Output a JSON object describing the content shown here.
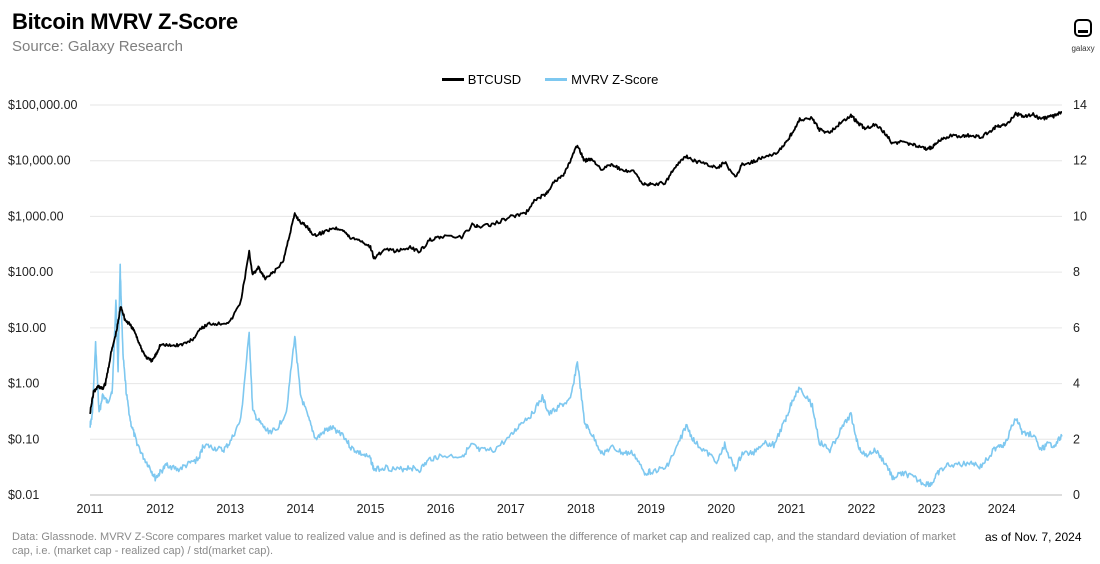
{
  "header": {
    "title": "Bitcoin MVRV Z-Score",
    "subtitle": "Source: Galaxy Research",
    "logo_text": "galaxy"
  },
  "footer": {
    "note": "Data: Glassnode. MVRV Z-Score compares market value to realized value and is defined as the ratio between the difference of market cap and realized cap, and the standard deviation of market cap, i.e. (market cap - realized cap) / std(market cap).",
    "as_of": "as of Nov. 7, 2024"
  },
  "colors": {
    "btc": "#000000",
    "mvrv": "#7ec8f0",
    "grid": "#e6e6e6"
  },
  "chart_data": {
    "type": "line",
    "title": "Bitcoin MVRV Z-Score",
    "legend_position": "top-center",
    "grid": true,
    "x_ticks": [
      "2011",
      "2012",
      "2013",
      "2014",
      "2015",
      "2016",
      "2017",
      "2018",
      "2019",
      "2020",
      "2021",
      "2022",
      "2023",
      "2024"
    ],
    "xlim": [
      2011.0,
      2024.86
    ],
    "y_left": {
      "scale": "log",
      "ylim": [
        0.01,
        100000
      ],
      "tick_values": [
        0.01,
        0.1,
        1,
        10,
        100,
        1000,
        10000,
        100000
      ],
      "tick_labels": [
        "$0.01",
        "$0.10",
        "$1.00",
        "$10.00",
        "$100.00",
        "$1,000.00",
        "$10,000.00",
        "$100,000.00"
      ]
    },
    "y_right": {
      "scale": "linear",
      "ylim": [
        0,
        14
      ],
      "tick_values": [
        0,
        2,
        4,
        6,
        8,
        10,
        12,
        14
      ],
      "tick_labels": [
        "0",
        "2",
        "4",
        "6",
        "8",
        "10",
        "12",
        "14"
      ]
    },
    "series": [
      {
        "name": "BTCUSD",
        "axis": "left",
        "points": [
          [
            2011.0,
            0.3
          ],
          [
            2011.05,
            0.7
          ],
          [
            2011.12,
            0.9
          ],
          [
            2011.18,
            0.8
          ],
          [
            2011.22,
            1.0
          ],
          [
            2011.3,
            3.5
          ],
          [
            2011.38,
            9
          ],
          [
            2011.44,
            25
          ],
          [
            2011.5,
            14
          ],
          [
            2011.58,
            11
          ],
          [
            2011.65,
            8
          ],
          [
            2011.72,
            4.5
          ],
          [
            2011.8,
            3
          ],
          [
            2011.88,
            2.5
          ],
          [
            2011.95,
            3.5
          ],
          [
            2012.0,
            5
          ],
          [
            2012.15,
            4.8
          ],
          [
            2012.3,
            5
          ],
          [
            2012.45,
            6
          ],
          [
            2012.6,
            10
          ],
          [
            2012.7,
            12
          ],
          [
            2012.85,
            12
          ],
          [
            2013.0,
            13
          ],
          [
            2013.15,
            30
          ],
          [
            2013.27,
            230
          ],
          [
            2013.32,
            90
          ],
          [
            2013.4,
            120
          ],
          [
            2013.5,
            75
          ],
          [
            2013.62,
            100
          ],
          [
            2013.75,
            150
          ],
          [
            2013.85,
            500
          ],
          [
            2013.92,
            1100
          ],
          [
            2014.0,
            800
          ],
          [
            2014.1,
            650
          ],
          [
            2014.2,
            450
          ],
          [
            2014.3,
            500
          ],
          [
            2014.45,
            620
          ],
          [
            2014.6,
            600
          ],
          [
            2014.7,
            420
          ],
          [
            2014.85,
            380
          ],
          [
            2015.0,
            280
          ],
          [
            2015.05,
            180
          ],
          [
            2015.2,
            250
          ],
          [
            2015.4,
            240
          ],
          [
            2015.55,
            280
          ],
          [
            2015.7,
            235
          ],
          [
            2015.85,
            380
          ],
          [
            2016.0,
            430
          ],
          [
            2016.3,
            420
          ],
          [
            2016.45,
            700
          ],
          [
            2016.55,
            650
          ],
          [
            2016.75,
            720
          ],
          [
            2017.0,
            1000
          ],
          [
            2017.2,
            1100
          ],
          [
            2017.35,
            2000
          ],
          [
            2017.5,
            2500
          ],
          [
            2017.6,
            4000
          ],
          [
            2017.75,
            5500
          ],
          [
            2017.85,
            10000
          ],
          [
            2017.95,
            19000
          ],
          [
            2018.05,
            10000
          ],
          [
            2018.15,
            11000
          ],
          [
            2018.3,
            7000
          ],
          [
            2018.45,
            8500
          ],
          [
            2018.6,
            6500
          ],
          [
            2018.75,
            6400
          ],
          [
            2018.9,
            3700
          ],
          [
            2019.0,
            3800
          ],
          [
            2019.2,
            4000
          ],
          [
            2019.35,
            8000
          ],
          [
            2019.5,
            12000
          ],
          [
            2019.62,
            10000
          ],
          [
            2019.8,
            8500
          ],
          [
            2019.95,
            7200
          ],
          [
            2020.05,
            9500
          ],
          [
            2020.2,
            5000
          ],
          [
            2020.3,
            8500
          ],
          [
            2020.45,
            9500
          ],
          [
            2020.6,
            11500
          ],
          [
            2020.75,
            13000
          ],
          [
            2020.9,
            19000
          ],
          [
            2021.0,
            30000
          ],
          [
            2021.12,
            55000
          ],
          [
            2021.3,
            58000
          ],
          [
            2021.4,
            36000
          ],
          [
            2021.55,
            32000
          ],
          [
            2021.7,
            48000
          ],
          [
            2021.85,
            65000
          ],
          [
            2021.95,
            48000
          ],
          [
            2022.05,
            38000
          ],
          [
            2022.2,
            45000
          ],
          [
            2022.35,
            30000
          ],
          [
            2022.45,
            20000
          ],
          [
            2022.6,
            22000
          ],
          [
            2022.75,
            19000
          ],
          [
            2022.9,
            16500
          ],
          [
            2023.0,
            17000
          ],
          [
            2023.1,
            23000
          ],
          [
            2023.25,
            28000
          ],
          [
            2023.45,
            27000
          ],
          [
            2023.55,
            29000
          ],
          [
            2023.7,
            26000
          ],
          [
            2023.85,
            35000
          ],
          [
            2023.95,
            43000
          ],
          [
            2024.05,
            42000
          ],
          [
            2024.2,
            70000
          ],
          [
            2024.3,
            63000
          ],
          [
            2024.45,
            67000
          ],
          [
            2024.55,
            57000
          ],
          [
            2024.65,
            60000
          ],
          [
            2024.75,
            63000
          ],
          [
            2024.86,
            75000
          ]
        ]
      },
      {
        "name": "MVRV Z-Score",
        "axis": "right",
        "points": [
          [
            2011.0,
            2.5
          ],
          [
            2011.03,
            2.8
          ],
          [
            2011.08,
            5.4
          ],
          [
            2011.13,
            2.9
          ],
          [
            2011.18,
            3.6
          ],
          [
            2011.25,
            3.3
          ],
          [
            2011.32,
            3.8
          ],
          [
            2011.37,
            7.0
          ],
          [
            2011.4,
            4.5
          ],
          [
            2011.43,
            8.2
          ],
          [
            2011.47,
            5.0
          ],
          [
            2011.52,
            3.6
          ],
          [
            2011.58,
            2.6
          ],
          [
            2011.65,
            2.0
          ],
          [
            2011.75,
            1.4
          ],
          [
            2011.85,
            1.0
          ],
          [
            2011.93,
            0.6
          ],
          [
            2012.0,
            0.8
          ],
          [
            2012.1,
            1.1
          ],
          [
            2012.25,
            0.9
          ],
          [
            2012.4,
            1.1
          ],
          [
            2012.55,
            1.3
          ],
          [
            2012.62,
            1.8
          ],
          [
            2012.75,
            1.7
          ],
          [
            2012.9,
            1.6
          ],
          [
            2013.0,
            1.9
          ],
          [
            2013.15,
            2.7
          ],
          [
            2013.27,
            5.8
          ],
          [
            2013.32,
            3.0
          ],
          [
            2013.42,
            2.6
          ],
          [
            2013.52,
            2.3
          ],
          [
            2013.65,
            2.3
          ],
          [
            2013.8,
            3.0
          ],
          [
            2013.92,
            5.7
          ],
          [
            2014.0,
            3.6
          ],
          [
            2014.12,
            2.7
          ],
          [
            2014.22,
            2.0
          ],
          [
            2014.35,
            2.3
          ],
          [
            2014.45,
            2.4
          ],
          [
            2014.6,
            2.2
          ],
          [
            2014.72,
            1.7
          ],
          [
            2014.85,
            1.5
          ],
          [
            2015.0,
            1.3
          ],
          [
            2015.05,
            0.9
          ],
          [
            2015.2,
            1.0
          ],
          [
            2015.4,
            0.9
          ],
          [
            2015.55,
            1.0
          ],
          [
            2015.7,
            0.9
          ],
          [
            2015.85,
            1.3
          ],
          [
            2016.0,
            1.4
          ],
          [
            2016.3,
            1.4
          ],
          [
            2016.45,
            1.8
          ],
          [
            2016.55,
            1.6
          ],
          [
            2016.75,
            1.6
          ],
          [
            2017.0,
            2.1
          ],
          [
            2017.15,
            2.6
          ],
          [
            2017.3,
            2.9
          ],
          [
            2017.45,
            3.5
          ],
          [
            2017.55,
            2.9
          ],
          [
            2017.7,
            3.2
          ],
          [
            2017.85,
            3.4
          ],
          [
            2017.95,
            4.8
          ],
          [
            2018.05,
            2.6
          ],
          [
            2018.15,
            2.2
          ],
          [
            2018.3,
            1.5
          ],
          [
            2018.45,
            1.7
          ],
          [
            2018.6,
            1.5
          ],
          [
            2018.75,
            1.5
          ],
          [
            2018.9,
            0.8
          ],
          [
            2019.0,
            0.85
          ],
          [
            2019.2,
            0.95
          ],
          [
            2019.35,
            1.6
          ],
          [
            2019.5,
            2.5
          ],
          [
            2019.62,
            1.9
          ],
          [
            2019.8,
            1.5
          ],
          [
            2019.95,
            1.2
          ],
          [
            2020.05,
            1.8
          ],
          [
            2020.2,
            0.9
          ],
          [
            2020.3,
            1.5
          ],
          [
            2020.45,
            1.5
          ],
          [
            2020.6,
            1.9
          ],
          [
            2020.75,
            1.8
          ],
          [
            2020.9,
            2.6
          ],
          [
            2021.0,
            3.3
          ],
          [
            2021.12,
            3.9
          ],
          [
            2021.3,
            3.2
          ],
          [
            2021.4,
            1.9
          ],
          [
            2021.55,
            1.6
          ],
          [
            2021.7,
            2.3
          ],
          [
            2021.85,
            2.9
          ],
          [
            2021.95,
            1.8
          ],
          [
            2022.05,
            1.4
          ],
          [
            2022.2,
            1.6
          ],
          [
            2022.35,
            1.1
          ],
          [
            2022.45,
            0.6
          ],
          [
            2022.6,
            0.8
          ],
          [
            2022.75,
            0.6
          ],
          [
            2022.9,
            0.4
          ],
          [
            2023.0,
            0.4
          ],
          [
            2023.1,
            0.8
          ],
          [
            2023.25,
            1.1
          ],
          [
            2023.45,
            1.1
          ],
          [
            2023.55,
            1.2
          ],
          [
            2023.7,
            1.0
          ],
          [
            2023.85,
            1.5
          ],
          [
            2023.95,
            1.8
          ],
          [
            2024.05,
            1.8
          ],
          [
            2024.2,
            2.8
          ],
          [
            2024.3,
            2.2
          ],
          [
            2024.45,
            2.2
          ],
          [
            2024.55,
            1.6
          ],
          [
            2024.65,
            1.8
          ],
          [
            2024.75,
            1.8
          ],
          [
            2024.86,
            2.1
          ]
        ]
      }
    ]
  }
}
